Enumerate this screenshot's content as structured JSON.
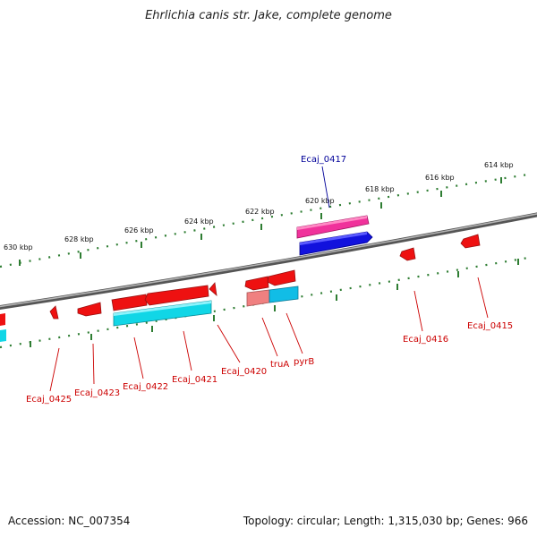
{
  "title": "Ehrlichia canis str. Jake, complete genome",
  "footer": {
    "accession": "Accession: NC_007354",
    "summary": "Topology: circular; Length: 1,315,030 bp; Genes: 966"
  },
  "colors": {
    "backbone": "#8a8a8a",
    "tick": "#2e7d32",
    "gene_red": "#ee1111",
    "gene_cyan": "#11d6e6",
    "gene_pink": "#f0329b",
    "gene_blue": "#1212dd",
    "label_red": "#cc0000",
    "label_blue": "#000099"
  },
  "scale_labels": [
    "630 kbp",
    "628 kbp",
    "626 kbp",
    "624 kbp",
    "622 kbp",
    "620 kbp",
    "618 kbp",
    "616 kbp",
    "614 kbp"
  ],
  "gene_labels": [
    "Ecaj_0425",
    "Ecaj_0423",
    "Ecaj_0422",
    "Ecaj_0421",
    "Ecaj_0420",
    "truA",
    "pyrB",
    "Ecaj_0416",
    "Ecaj_0415",
    "Ecaj_0417"
  ]
}
